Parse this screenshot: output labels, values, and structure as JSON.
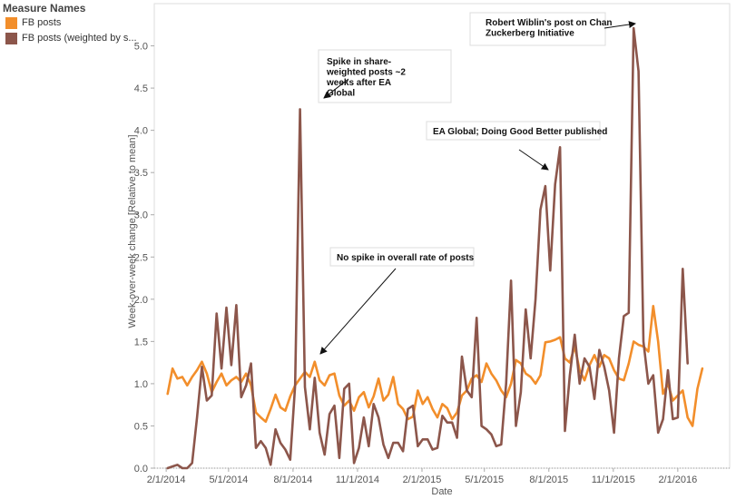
{
  "legend": {
    "title": "Measure Names",
    "items": [
      {
        "label": "FB posts",
        "color": "#f28e2b"
      },
      {
        "label": "FB posts (weighted by s...",
        "color": "#8c564b"
      }
    ]
  },
  "chart_data": {
    "type": "line",
    "title": "",
    "xlabel": "Date",
    "ylabel": "Week-over-week change [Relative to mean]",
    "ylim": [
      0,
      5.5
    ],
    "xlim": [
      "2014-01-15",
      "2016-04-15"
    ],
    "y_ticks": [
      "0.0",
      "0.5",
      "1.0",
      "1.5",
      "2.0",
      "2.5",
      "3.0",
      "3.5",
      "4.0",
      "4.5",
      "5.0"
    ],
    "x_ticks": [
      {
        "label": "2/1/2014",
        "date": "2014-02-01"
      },
      {
        "label": "5/1/2014",
        "date": "2014-05-01"
      },
      {
        "label": "8/1/2014",
        "date": "2014-08-01"
      },
      {
        "label": "11/1/2014",
        "date": "2014-11-01"
      },
      {
        "label": "2/1/2015",
        "date": "2015-02-01"
      },
      {
        "label": "5/1/2015",
        "date": "2015-05-01"
      },
      {
        "label": "8/1/2015",
        "date": "2015-08-01"
      },
      {
        "label": "11/1/2015",
        "date": "2015-11-01"
      },
      {
        "label": "2/1/2016",
        "date": "2016-02-01"
      }
    ],
    "grid": false,
    "x_start": "2014-02-03",
    "x_step_days": 7,
    "series": [
      {
        "name": "FB posts",
        "color": "#f28e2b",
        "values": [
          0.88,
          1.18,
          1.06,
          1.08,
          0.98,
          1.08,
          1.16,
          1.26,
          1.12,
          0.9,
          1.02,
          1.12,
          0.98,
          1.04,
          1.08,
          1.02,
          1.12,
          0.98,
          0.66,
          0.6,
          0.55,
          0.7,
          0.87,
          0.72,
          0.68,
          0.85,
          0.98,
          1.06,
          1.14,
          1.08,
          1.26,
          1.04,
          0.98,
          1.1,
          1.12,
          0.86,
          0.74,
          0.8,
          0.68,
          0.84,
          0.9,
          0.72,
          0.85,
          1.06,
          0.8,
          0.87,
          1.08,
          0.76,
          0.7,
          0.58,
          0.61,
          0.92,
          0.76,
          0.84,
          0.7,
          0.6,
          0.76,
          0.71,
          0.58,
          0.66,
          0.86,
          0.92,
          1.06,
          1.1,
          1.02,
          1.24,
          1.12,
          1.04,
          0.92,
          0.84,
          1.0,
          1.28,
          1.24,
          1.12,
          1.08,
          1.0,
          1.1,
          1.49,
          1.5,
          1.52,
          1.55,
          1.3,
          1.25,
          1.44,
          1.16,
          1.04,
          1.22,
          1.34,
          1.2,
          1.34,
          1.3,
          1.16,
          1.06,
          1.04,
          1.24,
          1.5,
          1.46,
          1.44,
          1.38,
          1.92,
          1.5,
          0.88,
          1.0,
          0.8,
          0.86,
          0.92,
          0.6,
          0.5,
          0.94,
          1.18
        ]
      },
      {
        "name": "FB posts (weighted by s...",
        "color": "#8c564b",
        "values": [
          0.0,
          0.02,
          0.04,
          0.0,
          0.0,
          0.06,
          0.6,
          1.2,
          0.8,
          0.86,
          1.83,
          1.18,
          1.9,
          1.22,
          1.93,
          0.84,
          0.98,
          1.24,
          0.24,
          0.32,
          0.24,
          0.04,
          0.46,
          0.3,
          0.22,
          0.1,
          0.98,
          4.25,
          0.96,
          0.46,
          1.07,
          0.42,
          0.16,
          0.64,
          0.74,
          0.12,
          0.94,
          1.0,
          0.06,
          0.24,
          0.6,
          0.26,
          0.76,
          0.6,
          0.28,
          0.12,
          0.3,
          0.3,
          0.2,
          0.7,
          0.74,
          0.26,
          0.34,
          0.34,
          0.22,
          0.24,
          0.62,
          0.54,
          0.54,
          0.36,
          1.32,
          0.92,
          0.84,
          1.78,
          0.5,
          0.46,
          0.4,
          0.26,
          0.28,
          1.0,
          2.22,
          0.5,
          0.9,
          1.88,
          1.3,
          2.0,
          3.06,
          3.34,
          2.34,
          3.36,
          3.8,
          0.44,
          1.1,
          1.58,
          1.0,
          1.3,
          1.2,
          0.82,
          1.4,
          1.2,
          0.92,
          0.42,
          1.3,
          1.8,
          1.84,
          5.21,
          4.7,
          1.5,
          1.0,
          1.1,
          0.42,
          0.58,
          1.16,
          0.58,
          0.6,
          2.36,
          1.24
        ]
      }
    ],
    "annotations": [
      {
        "lines": [
          "Spike in share-",
          "weighted posts ~2",
          "weeks after EA",
          "Global"
        ]
      },
      {
        "lines": [
          "EA Global; Doing Good Better published"
        ]
      },
      {
        "lines": [
          "No spike in overall rate of posts"
        ]
      },
      {
        "lines": [
          "Robert Wiblin's post on Chan",
          "Zuckerberg Initiative"
        ]
      }
    ]
  }
}
